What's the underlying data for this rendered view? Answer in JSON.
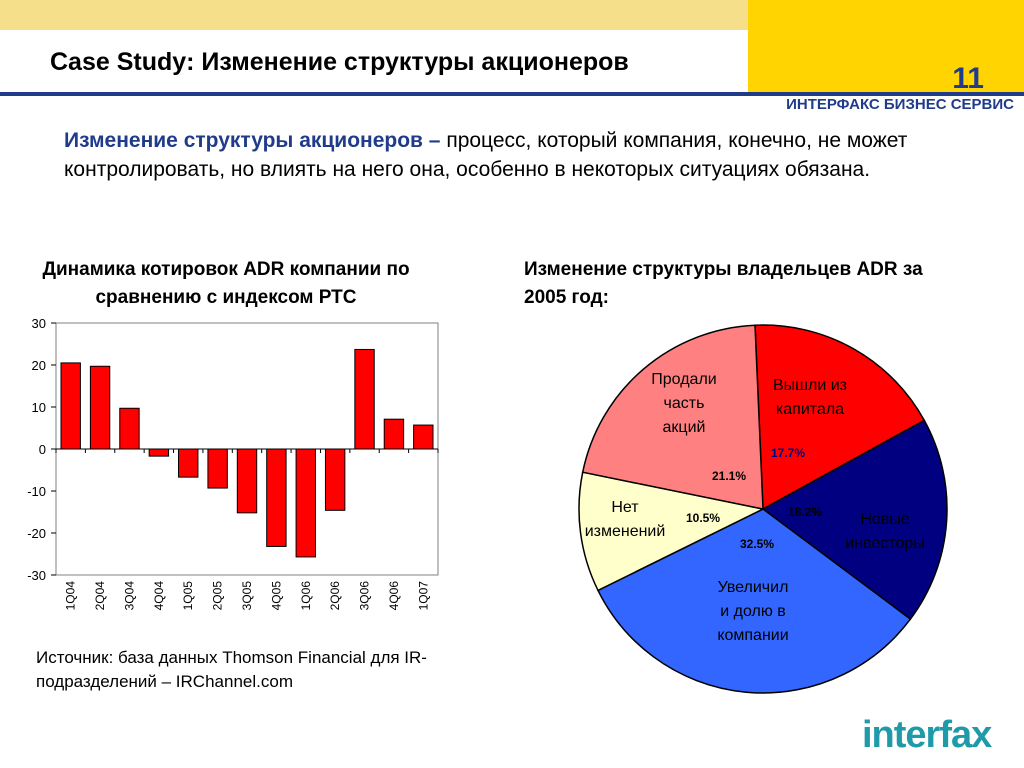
{
  "slide": {
    "title": "Case Study: Изменение структуры акционеров",
    "number": "11",
    "brand": "ИНТЕРФАКС БИЗНЕС СЕРВИС",
    "logo": "interfax",
    "colors": {
      "accent": "#1f3b8a",
      "band": "#ffd400",
      "bar": "#ff0000"
    }
  },
  "intro": {
    "term": "Изменение структуры акционеров –",
    "text": " процесс, который компания, конечно, не может контролировать, но влиять на него она, особенно в некоторых ситуациях обязана."
  },
  "source": "Источник: база данных Thomson Financial для IR-подразделений – IRChannel.com",
  "chart_data": [
    {
      "type": "bar",
      "title": "Динамика котировок ADR компании по сравнению с индексом РТС",
      "categories": [
        "1Q04",
        "2Q04",
        "3Q04",
        "4Q04",
        "1Q05",
        "2Q05",
        "3Q05",
        "4Q05",
        "1Q06",
        "2Q06",
        "3Q06",
        "4Q06",
        "1Q07"
      ],
      "values": [
        20.5,
        19.7,
        9.7,
        -1.7,
        -6.7,
        -9.3,
        -15.2,
        -23.2,
        -25.7,
        -14.6,
        23.7,
        7.1,
        5.7
      ],
      "ylim": [
        -30,
        30
      ],
      "yticks": [
        "30",
        "20",
        "10",
        "0",
        "-10",
        "-20",
        "-30"
      ],
      "color": "#ff0000"
    },
    {
      "type": "pie",
      "title": "Изменение структуры владельцев ADR за 2005 год:",
      "slices": [
        {
          "label": [
            "Вышли из",
            "капитала"
          ],
          "value": 17.7,
          "pct": "17.7%",
          "color": "#ff0000",
          "text_color": "#000000",
          "pct_color": "#000080"
        },
        {
          "label": [
            "Новые",
            "инвесторы"
          ],
          "value": 18.2,
          "pct": "18.2%",
          "color": "#000080",
          "text_color": "#000000",
          "pct_color": "#000000"
        },
        {
          "label": [
            "Увеличил",
            "и долю в",
            "компании"
          ],
          "value": 32.5,
          "pct": "32.5%",
          "color": "#3366ff",
          "text_color": "#000000",
          "pct_color": "#000000"
        },
        {
          "label": [
            "Нет",
            "изменений"
          ],
          "value": 10.5,
          "pct": "10.5%",
          "color": "#ffffcc",
          "text_color": "#000000",
          "pct_color": "#000000"
        },
        {
          "label": [
            "Продали",
            "часть",
            "акций"
          ],
          "value": 21.1,
          "pct": "21.1%",
          "color": "#ff8080",
          "text_color": "#000000",
          "pct_color": "#000000"
        }
      ]
    }
  ]
}
